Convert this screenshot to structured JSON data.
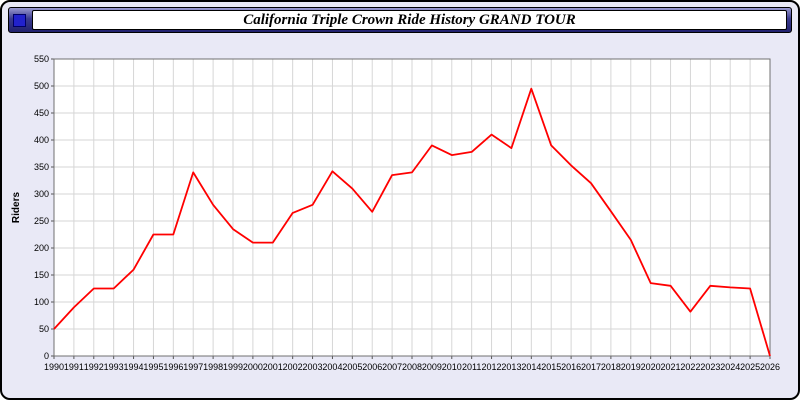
{
  "header": {
    "icon": "blue-square-window-icon"
  },
  "chart_data": {
    "type": "line",
    "title": "California Triple Crown Ride History GRAND TOUR",
    "xlabel": "",
    "ylabel": "Riders",
    "ylim": [
      0,
      550
    ],
    "ytick_step": 50,
    "grid": true,
    "legend": "none",
    "line_color": "#ff0000",
    "grid_color": "#d6d6d6",
    "plot_bg": "#ffffff",
    "x": [
      1990,
      1991,
      1992,
      1993,
      1994,
      1995,
      1996,
      1997,
      1998,
      1999,
      2000,
      2001,
      2002,
      2003,
      2004,
      2005,
      2006,
      2007,
      2008,
      2009,
      2010,
      2011,
      2012,
      2013,
      2014,
      2015,
      2016,
      2017,
      2018,
      2019,
      2020,
      2021,
      2022,
      2023,
      2024,
      2025,
      2026
    ],
    "values": [
      50,
      90,
      125,
      125,
      160,
      225,
      225,
      340,
      280,
      235,
      210,
      210,
      265,
      280,
      342,
      310,
      267,
      335,
      340,
      390,
      372,
      378,
      410,
      385,
      495,
      390,
      353,
      320,
      268,
      215,
      135,
      130,
      82,
      130,
      127,
      125,
      0
    ]
  }
}
